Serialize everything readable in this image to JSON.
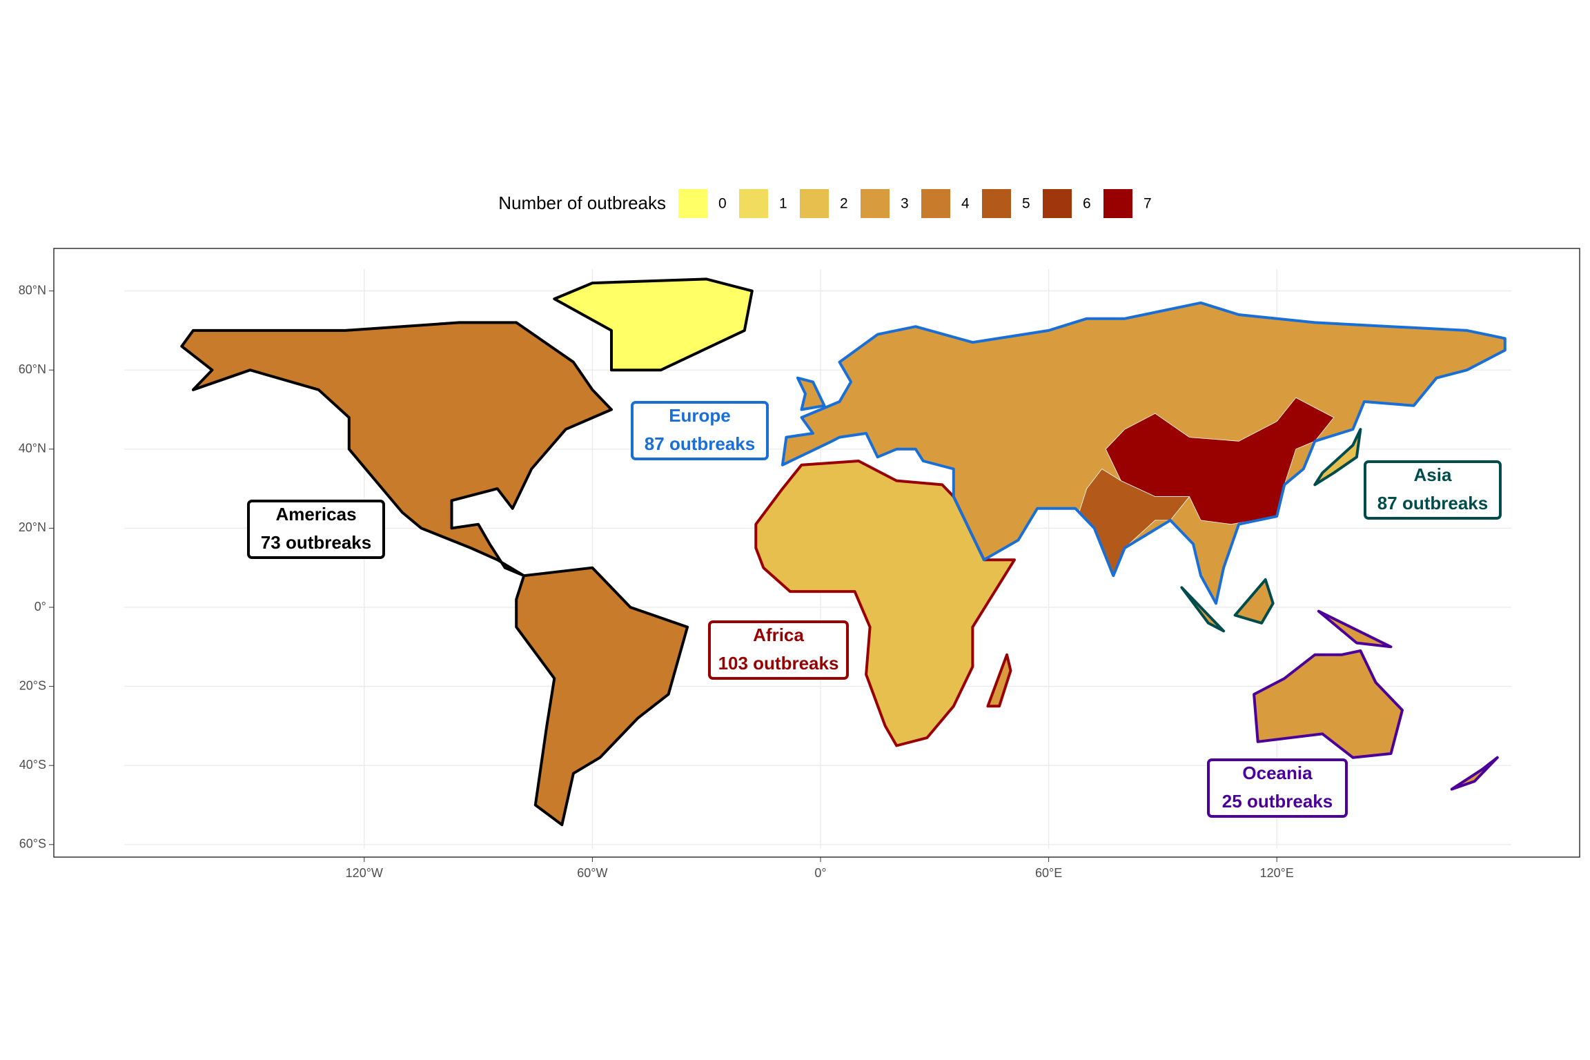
{
  "legend": {
    "title": "Number of outbreaks",
    "items": [
      {
        "label": "0",
        "color": "#ffff66"
      },
      {
        "label": "1",
        "color": "#f2dc5d"
      },
      {
        "label": "2",
        "color": "#e6bf4e"
      },
      {
        "label": "3",
        "color": "#d89c3e"
      },
      {
        "label": "4",
        "color": "#c77b2b"
      },
      {
        "label": "5",
        "color": "#b35a1a"
      },
      {
        "label": "6",
        "color": "#a0360c"
      },
      {
        "label": "7",
        "color": "#990000"
      }
    ]
  },
  "axes": {
    "xticks": [
      {
        "value": -120,
        "label": "120°W"
      },
      {
        "value": -60,
        "label": "60°W"
      },
      {
        "value": 0,
        "label": "0°"
      },
      {
        "value": 60,
        "label": "60°E"
      },
      {
        "value": 120,
        "label": "120°E"
      }
    ],
    "yticks": [
      {
        "value": -60,
        "label": "60°S"
      },
      {
        "value": -40,
        "label": "40°S"
      },
      {
        "value": -20,
        "label": "20°S"
      },
      {
        "value": 0,
        "label": "0°"
      },
      {
        "value": 20,
        "label": "20°N"
      },
      {
        "value": 40,
        "label": "40°N"
      },
      {
        "value": 60,
        "label": "60°N"
      },
      {
        "value": 80,
        "label": "80°N"
      }
    ]
  },
  "regions": [
    {
      "name": "Americas",
      "label": "73 outbreaks",
      "color": "#000000"
    },
    {
      "name": "Europe",
      "label": "87 outbreaks",
      "color": "#1a6fd6"
    },
    {
      "name": "Africa",
      "label": "103 outbreaks",
      "color": "#990000"
    },
    {
      "name": "Asia",
      "label": "87 outbreaks",
      "color": "#004c4c"
    },
    {
      "name": "Oceania",
      "label": "25 outbreaks",
      "color": "#4b0099"
    }
  ]
}
